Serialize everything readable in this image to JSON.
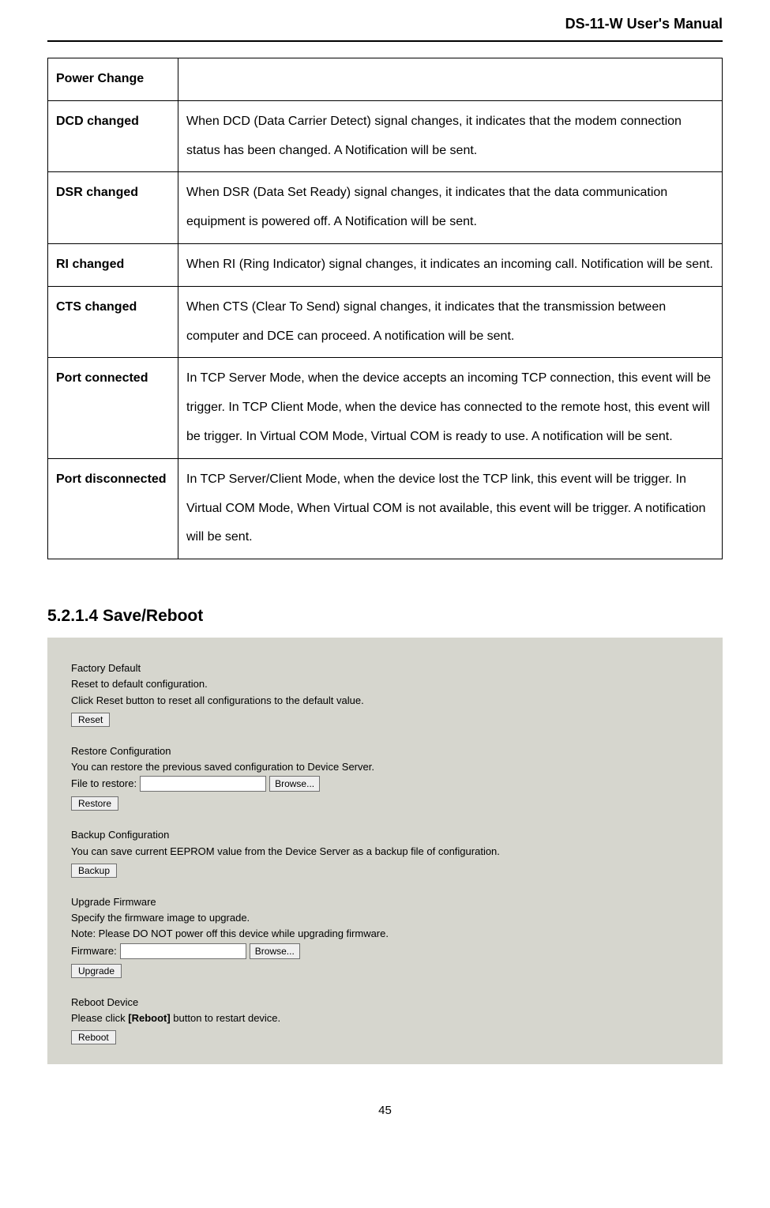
{
  "header": {
    "title": "DS-11-W User's Manual"
  },
  "table": {
    "rows": [
      {
        "label": "Power Change",
        "desc": ""
      },
      {
        "label": "DCD changed",
        "desc": "When DCD (Data Carrier Detect) signal changes, it indicates that the modem connection status has been changed.    A Notification will be sent."
      },
      {
        "label": "DSR changed",
        "desc": "When DSR (Data Set Ready) signal changes, it indicates that the data communication equipment is powered off.    A Notification will be sent."
      },
      {
        "label": "RI changed",
        "desc": "When RI (Ring Indicator) signal changes, it indicates an incoming call. Notification will be sent."
      },
      {
        "label": "CTS changed",
        "desc": "When CTS (Clear To Send) signal changes, it indicates that the transmission between computer and DCE can proceed.      A notification will be sent."
      },
      {
        "label": "Port connected",
        "desc": "In TCP Server Mode, when the device accepts an incoming TCP connection, this event will be trigger.    In TCP Client Mode, when the device has connected to the remote host, this event will be trigger.    In Virtual COM Mode, Virtual COM is ready to use.    A notification will be sent."
      },
      {
        "label": "Port disconnected",
        "desc": "In TCP Server/Client Mode, when the device lost the TCP link, this event will be trigger.    In Virtual COM Mode, When Virtual COM is not available, this event will be trigger.    A notification will be sent."
      }
    ]
  },
  "section": {
    "heading": "5.2.1.4   Save/Reboot"
  },
  "panel": {
    "factory": {
      "title": "Factory Default",
      "line1": "Reset to default configuration.",
      "line2": "Click Reset button to reset all configurations to the default value.",
      "button": "Reset"
    },
    "restore": {
      "title": "Restore Configuration",
      "line1": "You can restore the previous saved configuration to Device Server.",
      "fileLabel": "File to restore:",
      "browse": "Browse...",
      "button": "Restore"
    },
    "backup": {
      "title": "Backup Configuration",
      "line1": "You can save current EEPROM value from the Device Server as a backup file of configuration.",
      "button": "Backup"
    },
    "upgrade": {
      "title": "Upgrade Firmware",
      "line1": "Specify the firmware image to upgrade.",
      "line2": "Note: Please DO NOT power off this device while upgrading firmware.",
      "fileLabel": "Firmware:",
      "browse": "Browse...",
      "button": "Upgrade"
    },
    "reboot": {
      "title": "Reboot Device",
      "line_prefix": "Please click ",
      "line_bold": "[Reboot]",
      "line_suffix": " button to restart device.",
      "button": "Reboot"
    }
  },
  "page_number": "45",
  "colors": {
    "panel_bg": "#d6d6ce",
    "border": "#000000",
    "button_bg": "#efefef",
    "button_border": "#707070"
  }
}
